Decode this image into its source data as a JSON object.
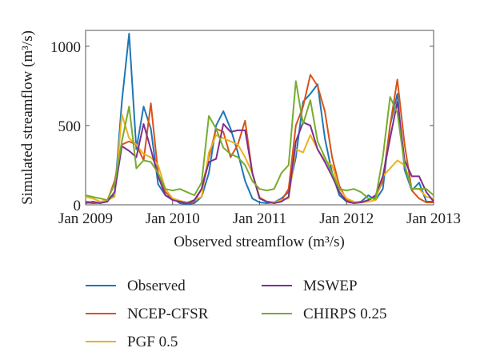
{
  "chart_data": {
    "type": "line",
    "xlabel": "Observed streamflow (m³/s)",
    "ylabel": "Simulated streamflow (m³/s)",
    "x_ticks": [
      {
        "value": 0,
        "label": "Jan 2009"
      },
      {
        "value": 12,
        "label": "Jan 2010"
      },
      {
        "value": 24,
        "label": "Jan 2011"
      },
      {
        "value": 36,
        "label": "Jan 2012"
      },
      {
        "value": 48,
        "label": "Jan 2013"
      }
    ],
    "y_ticks": [
      {
        "value": 0,
        "label": "0"
      },
      {
        "value": 500,
        "label": "500"
      },
      {
        "value": 1000,
        "label": "1000"
      }
    ],
    "x_unit": "months since Jan 2009",
    "xlim": [
      0,
      48
    ],
    "ylim": [
      0,
      1100
    ],
    "grid": false,
    "legend_position": "bottom",
    "series": [
      {
        "name": "Observed",
        "color": "#1f77b4",
        "values": [
          15,
          10,
          12,
          30,
          60,
          650,
          1080,
          350,
          620,
          480,
          130,
          60,
          40,
          10,
          5,
          10,
          50,
          200,
          500,
          590,
          480,
          330,
          150,
          40,
          15,
          10,
          15,
          40,
          80,
          300,
          650,
          700,
          760,
          420,
          200,
          60,
          20,
          15,
          20,
          60,
          30,
          100,
          500,
          700,
          220,
          90,
          140,
          20,
          20
        ]
      },
      {
        "name": "NCEP-CFSR",
        "color": "#d95319",
        "values": [
          20,
          15,
          12,
          25,
          150,
          380,
          400,
          380,
          280,
          640,
          200,
          80,
          40,
          25,
          15,
          20,
          100,
          300,
          480,
          460,
          300,
          380,
          530,
          200,
          40,
          20,
          15,
          25,
          100,
          500,
          620,
          820,
          750,
          590,
          300,
          120,
          30,
          15,
          15,
          30,
          50,
          150,
          500,
          790,
          380,
          90,
          40,
          15,
          15
        ]
      },
      {
        "name": "PGF 0.5",
        "color": "#edb120",
        "values": [
          50,
          40,
          20,
          30,
          50,
          570,
          420,
          380,
          320,
          300,
          250,
          100,
          40,
          25,
          15,
          30,
          50,
          330,
          440,
          420,
          400,
          380,
          300,
          200,
          50,
          20,
          15,
          30,
          40,
          350,
          330,
          440,
          350,
          280,
          250,
          100,
          40,
          20,
          15,
          20,
          30,
          180,
          230,
          280,
          250,
          100,
          100,
          50,
          40
        ]
      },
      {
        "name": "MSWEP",
        "color": "#7e2f8e",
        "values": [
          10,
          20,
          10,
          20,
          80,
          370,
          340,
          300,
          510,
          350,
          180,
          60,
          30,
          20,
          10,
          30,
          100,
          270,
          290,
          510,
          460,
          470,
          470,
          200,
          40,
          20,
          10,
          20,
          50,
          400,
          520,
          500,
          350,
          270,
          180,
          80,
          20,
          10,
          15,
          30,
          60,
          180,
          420,
          650,
          280,
          180,
          180,
          80,
          20
        ]
      },
      {
        "name": "CHIRPS 0.25",
        "color": "#77ac30",
        "values": [
          60,
          50,
          40,
          30,
          130,
          400,
          620,
          230,
          280,
          270,
          200,
          100,
          90,
          100,
          80,
          60,
          140,
          560,
          480,
          360,
          320,
          300,
          250,
          150,
          100,
          90,
          100,
          200,
          250,
          780,
          510,
          660,
          400,
          300,
          200,
          100,
          90,
          100,
          80,
          40,
          40,
          300,
          680,
          580,
          250,
          100,
          100,
          100,
          60
        ]
      }
    ]
  }
}
